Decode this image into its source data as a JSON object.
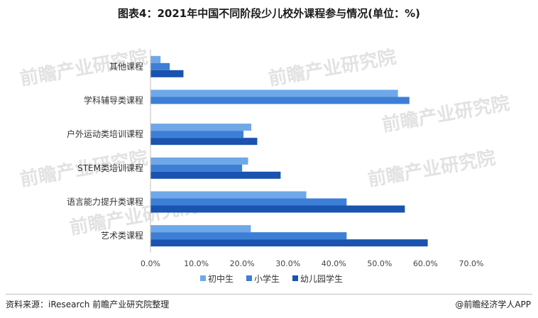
{
  "title": "图表4：2021年中国不同阶段少儿校外课程参与情况(单位：%)",
  "source": "资料来源：iResearch 前瞻产业研究院整理",
  "brand": "@前瞻经济学人APP",
  "watermark": "前瞻产业研究院",
  "chart_data": {
    "type": "bar",
    "orientation": "horizontal",
    "categories": [
      "其他课程",
      "学科辅导类课程",
      "户外运动类培训课程",
      "STEM类培训课程",
      "语言能力提升类课程",
      "艺术类课程"
    ],
    "series": [
      {
        "name": "初中生",
        "color": "#6fa8e8",
        "values": [
          2.2,
          54.0,
          22.0,
          21.3,
          34.0,
          21.9
        ]
      },
      {
        "name": "小学生",
        "color": "#3d7fd6",
        "values": [
          4.2,
          56.5,
          20.3,
          20.0,
          42.8,
          42.8
        ]
      },
      {
        "name": "幼儿园学生",
        "color": "#1a53b0",
        "values": [
          7.2,
          null,
          23.3,
          28.4,
          55.5,
          60.5
        ]
      }
    ],
    "xlim": [
      0,
      70
    ],
    "xticks": [
      "0.0%",
      "10.0%",
      "20.0%",
      "30.0%",
      "40.0%",
      "50.0%",
      "60.0%",
      "70.0%"
    ],
    "legend_position": "bottom",
    "grid": false
  }
}
